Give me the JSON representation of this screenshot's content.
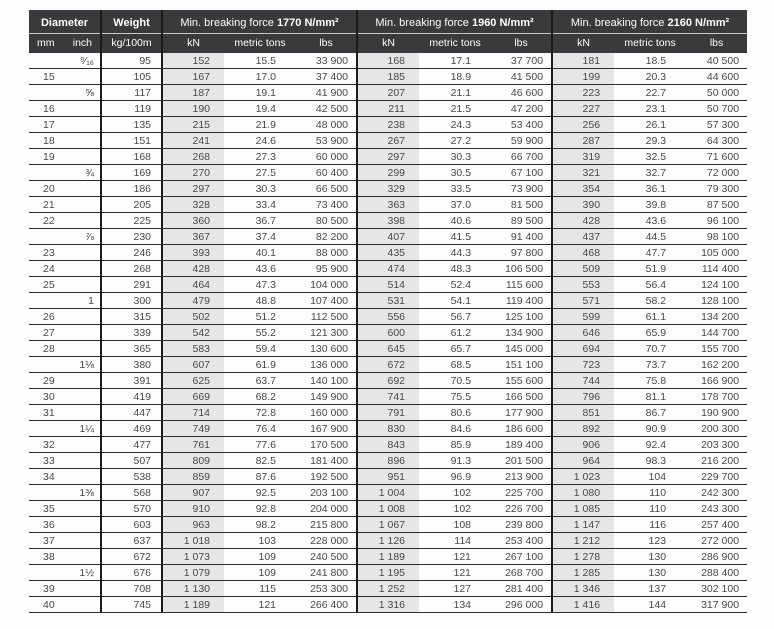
{
  "colors": {
    "header_bg": "#3a3a3c",
    "header_text": "#ffffff",
    "header_underline": "#c7c7c7",
    "group_divider": "#1c1c1c",
    "row_line": "#2e2e2e",
    "kn_column_shade": "#e6e6e6",
    "body_text": "#48484a"
  },
  "table": {
    "header": {
      "diameter": "Diameter",
      "mm": "mm",
      "inch": "inch",
      "weight": "Weight",
      "weight_unit": "kg/100m",
      "groups": [
        {
          "prefix": "Min. breaking force ",
          "strength": "1770 N/mm²"
        },
        {
          "prefix": "Min. breaking force ",
          "strength": "1960 N/mm²"
        },
        {
          "prefix": "Min. breaking force ",
          "strength": "2160 N/mm²"
        }
      ],
      "subcols": [
        "kN",
        "metric tons",
        "lbs"
      ]
    },
    "rows": [
      {
        "mm": "",
        "inch": "⁹⁄₁₆",
        "weight": "95",
        "f1770": [
          "152",
          "15.5",
          "33 900"
        ],
        "f1960": [
          "168",
          "17.1",
          "37 700"
        ],
        "f2160": [
          "181",
          "18.5",
          "40 500"
        ]
      },
      {
        "mm": "15",
        "inch": "",
        "weight": "105",
        "f1770": [
          "167",
          "17.0",
          "37 400"
        ],
        "f1960": [
          "185",
          "18.9",
          "41 500"
        ],
        "f2160": [
          "199",
          "20.3",
          "44 600"
        ]
      },
      {
        "mm": "",
        "inch": "⅝",
        "weight": "117",
        "f1770": [
          "187",
          "19.1",
          "41 900"
        ],
        "f1960": [
          "207",
          "21.1",
          "46 600"
        ],
        "f2160": [
          "223",
          "22.7",
          "50 000"
        ]
      },
      {
        "mm": "16",
        "inch": "",
        "weight": "119",
        "f1770": [
          "190",
          "19.4",
          "42 500"
        ],
        "f1960": [
          "211",
          "21.5",
          "47 200"
        ],
        "f2160": [
          "227",
          "23.1",
          "50 700"
        ]
      },
      {
        "mm": "17",
        "inch": "",
        "weight": "135",
        "f1770": [
          "215",
          "21.9",
          "48 000"
        ],
        "f1960": [
          "238",
          "24.3",
          "53 400"
        ],
        "f2160": [
          "256",
          "26.1",
          "57 300"
        ]
      },
      {
        "mm": "18",
        "inch": "",
        "weight": "151",
        "f1770": [
          "241",
          "24.6",
          "53 900"
        ],
        "f1960": [
          "267",
          "27.2",
          "59 900"
        ],
        "f2160": [
          "287",
          "29.3",
          "64 300"
        ]
      },
      {
        "mm": "19",
        "inch": "",
        "weight": "168",
        "f1770": [
          "268",
          "27.3",
          "60 000"
        ],
        "f1960": [
          "297",
          "30.3",
          "66 700"
        ],
        "f2160": [
          "319",
          "32.5",
          "71 600"
        ]
      },
      {
        "mm": "",
        "inch": "¾",
        "weight": "169",
        "f1770": [
          "270",
          "27.5",
          "60 400"
        ],
        "f1960": [
          "299",
          "30.5",
          "67 100"
        ],
        "f2160": [
          "321",
          "32.7",
          "72 000"
        ]
      },
      {
        "mm": "20",
        "inch": "",
        "weight": "186",
        "f1770": [
          "297",
          "30.3",
          "66 500"
        ],
        "f1960": [
          "329",
          "33.5",
          "73 900"
        ],
        "f2160": [
          "354",
          "36.1",
          "79 300"
        ]
      },
      {
        "mm": "21",
        "inch": "",
        "weight": "205",
        "f1770": [
          "328",
          "33.4",
          "73 400"
        ],
        "f1960": [
          "363",
          "37.0",
          "81 500"
        ],
        "f2160": [
          "390",
          "39.8",
          "87 500"
        ]
      },
      {
        "mm": "22",
        "inch": "",
        "weight": "225",
        "f1770": [
          "360",
          "36.7",
          "80 500"
        ],
        "f1960": [
          "398",
          "40.6",
          "89 500"
        ],
        "f2160": [
          "428",
          "43.6",
          "96 100"
        ]
      },
      {
        "mm": "",
        "inch": "⅞",
        "weight": "230",
        "f1770": [
          "367",
          "37.4",
          "82 200"
        ],
        "f1960": [
          "407",
          "41.5",
          "91 400"
        ],
        "f2160": [
          "437",
          "44.5",
          "98 100"
        ]
      },
      {
        "mm": "23",
        "inch": "",
        "weight": "246",
        "f1770": [
          "393",
          "40.1",
          "88 000"
        ],
        "f1960": [
          "435",
          "44.3",
          "97 800"
        ],
        "f2160": [
          "468",
          "47.7",
          "105 000"
        ]
      },
      {
        "mm": "24",
        "inch": "",
        "weight": "268",
        "f1770": [
          "428",
          "43.6",
          "95 900"
        ],
        "f1960": [
          "474",
          "48.3",
          "106 500"
        ],
        "f2160": [
          "509",
          "51.9",
          "114 400"
        ]
      },
      {
        "mm": "25",
        "inch": "",
        "weight": "291",
        "f1770": [
          "464",
          "47.3",
          "104 000"
        ],
        "f1960": [
          "514",
          "52.4",
          "115 600"
        ],
        "f2160": [
          "553",
          "56.4",
          "124 100"
        ]
      },
      {
        "mm": "",
        "inch": "1",
        "weight": "300",
        "f1770": [
          "479",
          "48.8",
          "107 400"
        ],
        "f1960": [
          "531",
          "54.1",
          "119 400"
        ],
        "f2160": [
          "571",
          "58.2",
          "128 100"
        ]
      },
      {
        "mm": "26",
        "inch": "",
        "weight": "315",
        "f1770": [
          "502",
          "51.2",
          "112 500"
        ],
        "f1960": [
          "556",
          "56.7",
          "125 100"
        ],
        "f2160": [
          "599",
          "61.1",
          "134 200"
        ]
      },
      {
        "mm": "27",
        "inch": "",
        "weight": "339",
        "f1770": [
          "542",
          "55.2",
          "121 300"
        ],
        "f1960": [
          "600",
          "61.2",
          "134 900"
        ],
        "f2160": [
          "646",
          "65.9",
          "144 700"
        ]
      },
      {
        "mm": "28",
        "inch": "",
        "weight": "365",
        "f1770": [
          "583",
          "59.4",
          "130 600"
        ],
        "f1960": [
          "645",
          "65.7",
          "145 000"
        ],
        "f2160": [
          "694",
          "70.7",
          "155 700"
        ]
      },
      {
        "mm": "",
        "inch": "1⅛",
        "weight": "380",
        "f1770": [
          "607",
          "61.9",
          "136 000"
        ],
        "f1960": [
          "672",
          "68.5",
          "151 100"
        ],
        "f2160": [
          "723",
          "73.7",
          "162 200"
        ]
      },
      {
        "mm": "29",
        "inch": "",
        "weight": "391",
        "f1770": [
          "625",
          "63.7",
          "140 100"
        ],
        "f1960": [
          "692",
          "70.5",
          "155 600"
        ],
        "f2160": [
          "744",
          "75.8",
          "166 900"
        ]
      },
      {
        "mm": "30",
        "inch": "",
        "weight": "419",
        "f1770": [
          "669",
          "68.2",
          "149 900"
        ],
        "f1960": [
          "741",
          "75.5",
          "166 500"
        ],
        "f2160": [
          "796",
          "81.1",
          "178 700"
        ]
      },
      {
        "mm": "31",
        "inch": "",
        "weight": "447",
        "f1770": [
          "714",
          "72.8",
          "160 000"
        ],
        "f1960": [
          "791",
          "80.6",
          "177 900"
        ],
        "f2160": [
          "851",
          "86.7",
          "190 900"
        ]
      },
      {
        "mm": "",
        "inch": "1¼",
        "weight": "469",
        "f1770": [
          "749",
          "76.4",
          "167 900"
        ],
        "f1960": [
          "830",
          "84.6",
          "186 600"
        ],
        "f2160": [
          "892",
          "90.9",
          "200 300"
        ]
      },
      {
        "mm": "32",
        "inch": "",
        "weight": "477",
        "f1770": [
          "761",
          "77.6",
          "170 500"
        ],
        "f1960": [
          "843",
          "85.9",
          "189 400"
        ],
        "f2160": [
          "906",
          "92.4",
          "203 300"
        ]
      },
      {
        "mm": "33",
        "inch": "",
        "weight": "507",
        "f1770": [
          "809",
          "82.5",
          "181 400"
        ],
        "f1960": [
          "896",
          "91.3",
          "201 500"
        ],
        "f2160": [
          "964",
          "98.3",
          "216 200"
        ]
      },
      {
        "mm": "34",
        "inch": "",
        "weight": "538",
        "f1770": [
          "859",
          "87.6",
          "192 500"
        ],
        "f1960": [
          "951",
          "96.9",
          "213 900"
        ],
        "f2160": [
          "1 023",
          "104",
          "229 700"
        ]
      },
      {
        "mm": "",
        "inch": "1⅜",
        "weight": "568",
        "f1770": [
          "907",
          "92.5",
          "203 100"
        ],
        "f1960": [
          "1 004",
          "102",
          "225 700"
        ],
        "f2160": [
          "1 080",
          "110",
          "242 300"
        ]
      },
      {
        "mm": "35",
        "inch": "",
        "weight": "570",
        "f1770": [
          "910",
          "92.8",
          "204 000"
        ],
        "f1960": [
          "1 008",
          "102",
          "226 700"
        ],
        "f2160": [
          "1 085",
          "110",
          "243 300"
        ]
      },
      {
        "mm": "36",
        "inch": "",
        "weight": "603",
        "f1770": [
          "963",
          "98.2",
          "215 800"
        ],
        "f1960": [
          "1 067",
          "108",
          "239 800"
        ],
        "f2160": [
          "1 147",
          "116",
          "257 400"
        ]
      },
      {
        "mm": "37",
        "inch": "",
        "weight": "637",
        "f1770": [
          "1 018",
          "103",
          "228 000"
        ],
        "f1960": [
          "1 126",
          "114",
          "253 400"
        ],
        "f2160": [
          "1 212",
          "123",
          "272 000"
        ]
      },
      {
        "mm": "38",
        "inch": "",
        "weight": "672",
        "f1770": [
          "1 073",
          "109",
          "240 500"
        ],
        "f1960": [
          "1 189",
          "121",
          "267 100"
        ],
        "f2160": [
          "1 278",
          "130",
          "286 900"
        ]
      },
      {
        "mm": "",
        "inch": "1½",
        "weight": "676",
        "f1770": [
          "1 079",
          "109",
          "241 800"
        ],
        "f1960": [
          "1 195",
          "121",
          "268 700"
        ],
        "f2160": [
          "1 285",
          "130",
          "288 400"
        ]
      },
      {
        "mm": "39",
        "inch": "",
        "weight": "708",
        "f1770": [
          "1 130",
          "115",
          "253 300"
        ],
        "f1960": [
          "1 252",
          "127",
          "281 400"
        ],
        "f2160": [
          "1 346",
          "137",
          "302 100"
        ]
      },
      {
        "mm": "40",
        "inch": "",
        "weight": "745",
        "f1770": [
          "1 189",
          "121",
          "266 400"
        ],
        "f1960": [
          "1 316",
          "134",
          "296 000"
        ],
        "f2160": [
          "1 416",
          "144",
          "317 900"
        ]
      }
    ]
  }
}
